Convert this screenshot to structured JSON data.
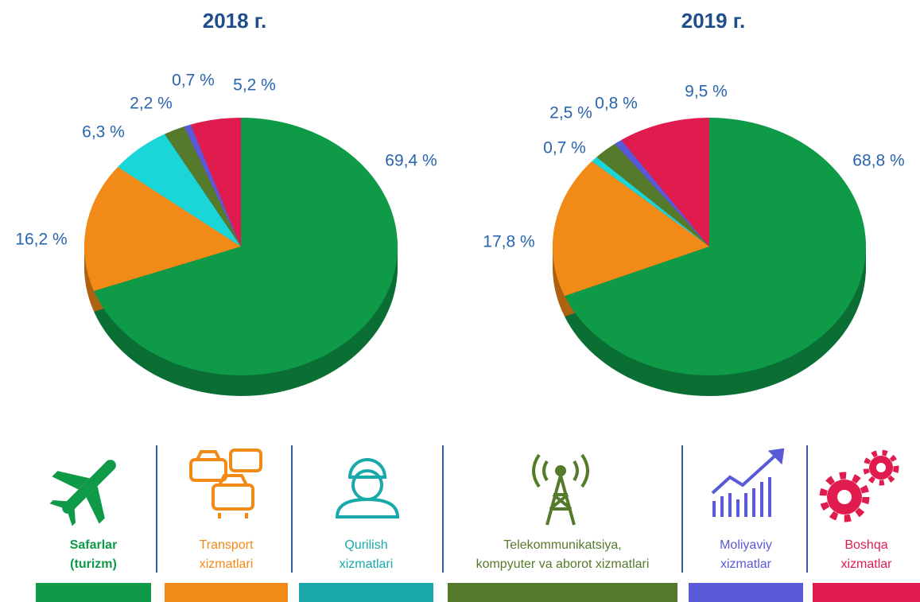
{
  "chart_data": [
    {
      "type": "pie",
      "title": "2018 г.",
      "values": [
        69.4,
        16.2,
        6.3,
        2.2,
        0.7,
        5.2
      ],
      "value_labels": [
        "69,4 %",
        "16,2 %",
        "6,3 %",
        "2,2 %",
        "0,7 %",
        "5,2 %"
      ],
      "colors": [
        "#0f9a48",
        "#f28a17",
        "#1ad6d8",
        "#567a2c",
        "#5a5ad8",
        "#e01c4e"
      ]
    },
    {
      "type": "pie",
      "title": "2019 г.",
      "values": [
        68.8,
        17.8,
        0.7,
        2.5,
        0.8,
        9.5
      ],
      "value_labels": [
        "68,8 %",
        "17,8 %",
        "0,7 %",
        "2,5 %",
        "0,8 %",
        "9,5 %"
      ],
      "colors": [
        "#0f9a48",
        "#f28a17",
        "#1ad6d8",
        "#567a2c",
        "#5a5ad8",
        "#e01c4e"
      ]
    }
  ],
  "legend": {
    "labels": [
      "Safarlar\n(turizm)",
      "Transport\nxizmatlari",
      "Qurilish\nxizmatlari",
      "Telekommunikatsiya,\nkompyuter va aborot xizmatlari",
      "Moliyaviy\nxizmatlar",
      "Boshqa\nxizmatlar"
    ],
    "colors": [
      "#0f9a48",
      "#f28a17",
      "#1aa9ab",
      "#567a2c",
      "#5a5ad8",
      "#e01c4e"
    ]
  }
}
